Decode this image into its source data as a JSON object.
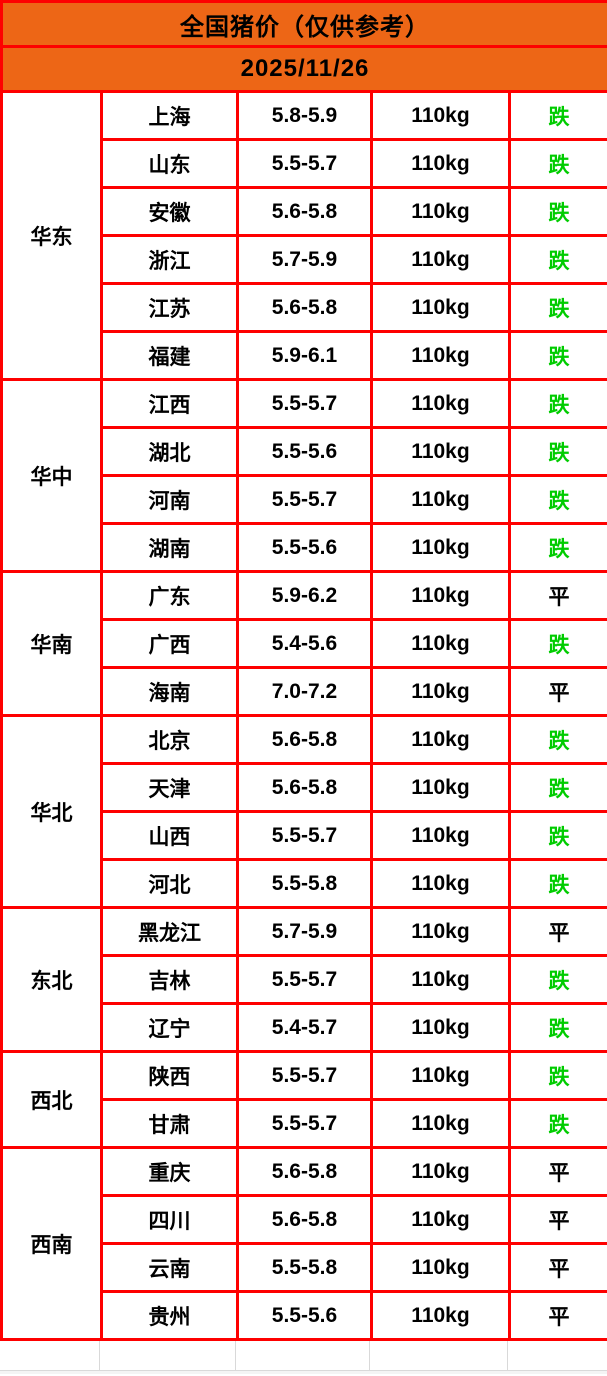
{
  "header": {
    "title": "全国猪价（仅供参考）",
    "date": "2025/11/26"
  },
  "colors": {
    "header_bg": "#ed6616",
    "border_red": "#fe0000",
    "trend": {
      "跌": "#00cc00",
      "平": "#000000"
    }
  },
  "chart_data": {
    "type": "table",
    "title": "全国猪价（仅供参考）",
    "date": "2025/11/26",
    "columns": [
      "region",
      "province",
      "price_range",
      "weight",
      "trend"
    ],
    "weight_unit": "110kg",
    "regions": [
      {
        "name": "华东",
        "rows": [
          {
            "province": "上海",
            "price": "5.8-5.9",
            "weight": "110kg",
            "trend": "跌"
          },
          {
            "province": "山东",
            "price": "5.5-5.7",
            "weight": "110kg",
            "trend": "跌"
          },
          {
            "province": "安徽",
            "price": "5.6-5.8",
            "weight": "110kg",
            "trend": "跌"
          },
          {
            "province": "浙江",
            "price": "5.7-5.9",
            "weight": "110kg",
            "trend": "跌"
          },
          {
            "province": "江苏",
            "price": "5.6-5.8",
            "weight": "110kg",
            "trend": "跌"
          },
          {
            "province": "福建",
            "price": "5.9-6.1",
            "weight": "110kg",
            "trend": "跌"
          }
        ]
      },
      {
        "name": "华中",
        "rows": [
          {
            "province": "江西",
            "price": "5.5-5.7",
            "weight": "110kg",
            "trend": "跌"
          },
          {
            "province": "湖北",
            "price": "5.5-5.6",
            "weight": "110kg",
            "trend": "跌"
          },
          {
            "province": "河南",
            "price": "5.5-5.7",
            "weight": "110kg",
            "trend": "跌"
          },
          {
            "province": "湖南",
            "price": "5.5-5.6",
            "weight": "110kg",
            "trend": "跌"
          }
        ]
      },
      {
        "name": "华南",
        "rows": [
          {
            "province": "广东",
            "price": "5.9-6.2",
            "weight": "110kg",
            "trend": "平"
          },
          {
            "province": "广西",
            "price": "5.4-5.6",
            "weight": "110kg",
            "trend": "跌"
          },
          {
            "province": "海南",
            "price": "7.0-7.2",
            "weight": "110kg",
            "trend": "平"
          }
        ]
      },
      {
        "name": "华北",
        "rows": [
          {
            "province": "北京",
            "price": "5.6-5.8",
            "weight": "110kg",
            "trend": "跌"
          },
          {
            "province": "天津",
            "price": "5.6-5.8",
            "weight": "110kg",
            "trend": "跌"
          },
          {
            "province": "山西",
            "price": "5.5-5.7",
            "weight": "110kg",
            "trend": "跌"
          },
          {
            "province": "河北",
            "price": "5.5-5.8",
            "weight": "110kg",
            "trend": "跌"
          }
        ]
      },
      {
        "name": "东北",
        "rows": [
          {
            "province": "黑龙江",
            "price": "5.7-5.9",
            "weight": "110kg",
            "trend": "平"
          },
          {
            "province": "吉林",
            "price": "5.5-5.7",
            "weight": "110kg",
            "trend": "跌"
          },
          {
            "province": "辽宁",
            "price": "5.4-5.7",
            "weight": "110kg",
            "trend": "跌"
          }
        ]
      },
      {
        "name": "西北",
        "rows": [
          {
            "province": "陕西",
            "price": "5.5-5.7",
            "weight": "110kg",
            "trend": "跌"
          },
          {
            "province": "甘肃",
            "price": "5.5-5.7",
            "weight": "110kg",
            "trend": "跌"
          }
        ]
      },
      {
        "name": "西南",
        "rows": [
          {
            "province": "重庆",
            "price": "5.6-5.8",
            "weight": "110kg",
            "trend": "平"
          },
          {
            "province": "四川",
            "price": "5.6-5.8",
            "weight": "110kg",
            "trend": "平"
          },
          {
            "province": "云南",
            "price": "5.5-5.8",
            "weight": "110kg",
            "trend": "平"
          },
          {
            "province": "贵州",
            "price": "5.5-5.6",
            "weight": "110kg",
            "trend": "平"
          }
        ]
      }
    ]
  }
}
